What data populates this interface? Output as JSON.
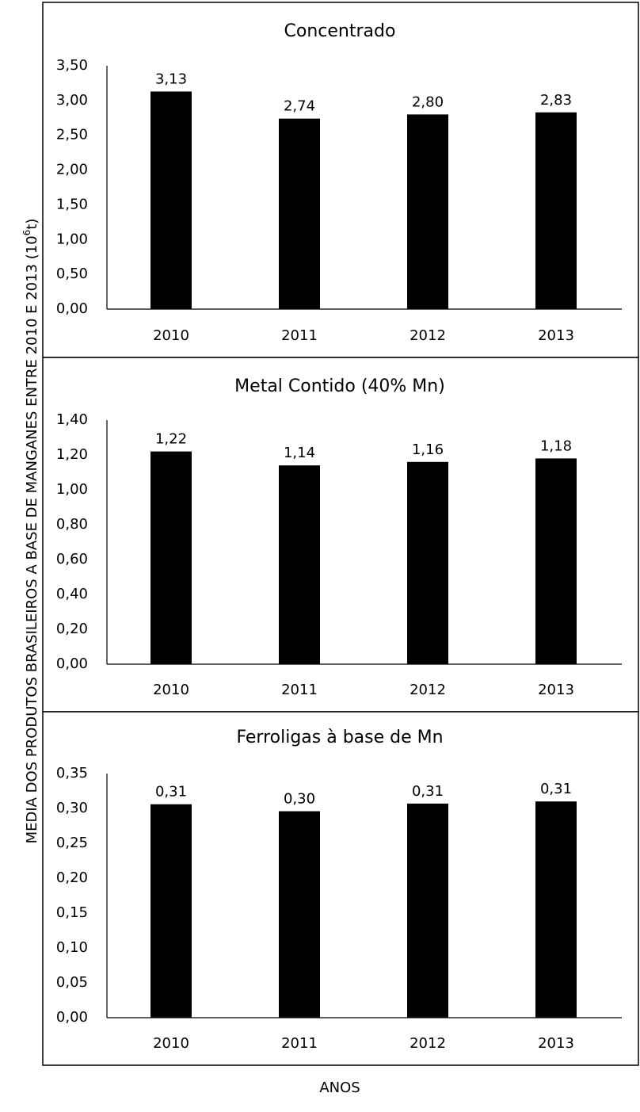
{
  "ylabel": "MEDIA DOS PRODUTOS BRASILEIROS A BASE DE MANGANES ENTRE 2010 E 2013 (10",
  "ylabel_sup": "6",
  "ylabel_tail": "t)",
  "xlabel": "ANOS",
  "chart_data": [
    {
      "type": "bar",
      "title": "Concentrado",
      "categories": [
        "2010",
        "2011",
        "2012",
        "2013"
      ],
      "values": [
        3.13,
        2.74,
        2.8,
        2.83
      ],
      "value_labels": [
        "3,13",
        "2,74",
        "2,80",
        "2,83"
      ],
      "ylim": [
        0,
        3.5
      ],
      "yticks": [
        0,
        0.5,
        1.0,
        1.5,
        2.0,
        2.5,
        3.0,
        3.5
      ],
      "ytick_labels": [
        "0,00",
        "0,50",
        "1,00",
        "1,50",
        "2,00",
        "2,50",
        "3,00",
        "3,50"
      ],
      "grid": false,
      "bar_color": "#000000"
    },
    {
      "type": "bar",
      "title": "Metal Contido (40% Mn)",
      "categories": [
        "2010",
        "2011",
        "2012",
        "2013"
      ],
      "values": [
        1.22,
        1.14,
        1.16,
        1.18
      ],
      "value_labels": [
        "1,22",
        "1,14",
        "1,16",
        "1,18"
      ],
      "ylim": [
        0,
        1.4
      ],
      "yticks": [
        0,
        0.2,
        0.4,
        0.6,
        0.8,
        1.0,
        1.2,
        1.4
      ],
      "ytick_labels": [
        "0,00",
        "0,20",
        "0,40",
        "0,60",
        "0,80",
        "1,00",
        "1,20",
        "1,40"
      ],
      "grid": false,
      "bar_color": "#000000"
    },
    {
      "type": "bar",
      "title": "Ferroligas à base de Mn",
      "categories": [
        "2010",
        "2011",
        "2012",
        "2013"
      ],
      "values": [
        0.306,
        0.296,
        0.307,
        0.31
      ],
      "value_labels": [
        "0,31",
        "0,30",
        "0,31",
        "0,31"
      ],
      "ylim": [
        0,
        0.35
      ],
      "yticks": [
        0,
        0.05,
        0.1,
        0.15,
        0.2,
        0.25,
        0.3,
        0.35
      ],
      "ytick_labels": [
        "0,00",
        "0,05",
        "0,10",
        "0,15",
        "0,20",
        "0,25",
        "0,30",
        "0,35"
      ],
      "grid": false,
      "bar_color": "#000000"
    }
  ]
}
